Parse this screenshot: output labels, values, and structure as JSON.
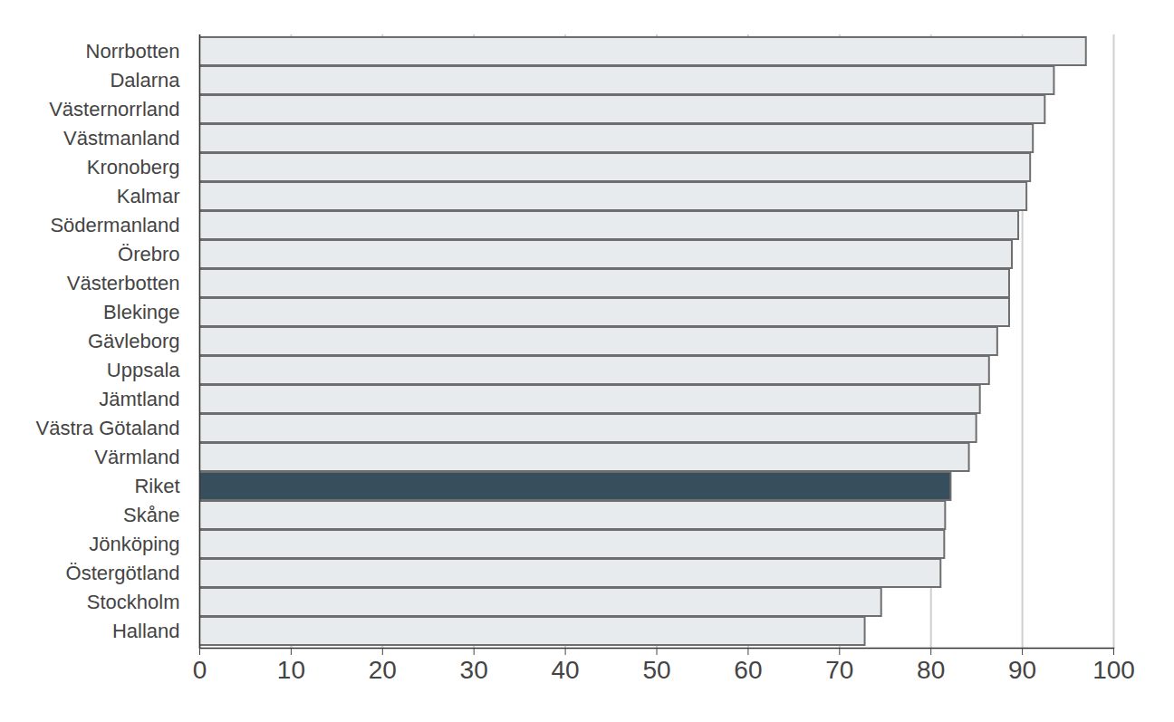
{
  "chart_data": {
    "type": "bar",
    "orientation": "horizontal",
    "categories": [
      "Norrbotten",
      "Dalarna",
      "Västernorrland",
      "Västmanland",
      "Kronoberg",
      "Kalmar",
      "Södermanland",
      "Örebro",
      "Västerbotten",
      "Blekinge",
      "Gävleborg",
      "Uppsala",
      "Jämtland",
      "Västra Götaland",
      "Värmland",
      "Riket",
      "Skåne",
      "Jönköping",
      "Östergötland",
      "Stockholm",
      "Halland"
    ],
    "values": [
      97.0,
      93.5,
      92.5,
      91.2,
      90.9,
      90.5,
      89.6,
      88.9,
      88.6,
      88.6,
      87.3,
      86.4,
      85.4,
      85.0,
      84.2,
      82.2,
      81.6,
      81.5,
      81.1,
      74.6,
      72.8
    ],
    "colors": [
      "#e8ebee",
      "#e8ebee",
      "#e8ebee",
      "#e8ebee",
      "#e8ebee",
      "#e8ebee",
      "#e8ebee",
      "#e8ebee",
      "#e8ebee",
      "#e8ebee",
      "#e8ebee",
      "#e8ebee",
      "#e8ebee",
      "#e8ebee",
      "#e8ebee",
      "#374e5c",
      "#e8ebee",
      "#e8ebee",
      "#e8ebee",
      "#e8ebee",
      "#e8ebee"
    ],
    "xlim": [
      0,
      100
    ],
    "xticks": [
      0,
      10,
      20,
      30,
      40,
      50,
      60,
      70,
      80,
      90,
      100
    ],
    "grid": true
  }
}
